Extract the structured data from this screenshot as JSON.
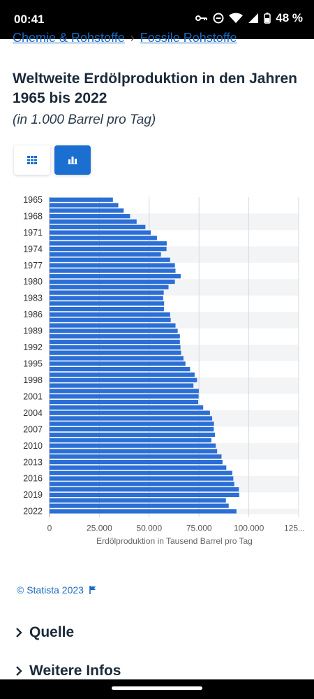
{
  "status": {
    "time": "00:41",
    "battery": "48 %"
  },
  "breadcrumb": {
    "item1": "Chemie & Rohstoffe",
    "separator": "›",
    "item2": "Fossile Rohstoffe"
  },
  "header": {
    "title": "Weltweite Erdölproduktion in den Jahren 1965 bis 2022",
    "subtitle": "(in 1.000 Barrel pro Tag)"
  },
  "colors": {
    "bar": "#2b6fd6",
    "accent": "#1a6fd0",
    "link": "#1a6bc2"
  },
  "chart_data": {
    "type": "bar",
    "orientation": "horizontal",
    "categories": [
      "1965",
      "1966",
      "1967",
      "1968",
      "1969",
      "1970",
      "1971",
      "1972",
      "1973",
      "1974",
      "1975",
      "1976",
      "1977",
      "1978",
      "1979",
      "1980",
      "1981",
      "1982",
      "1983",
      "1984",
      "1985",
      "1986",
      "1987",
      "1988",
      "1989",
      "1990",
      "1991",
      "1992",
      "1993",
      "1994",
      "1995",
      "1996",
      "1997",
      "1998",
      "1999",
      "2000",
      "2001",
      "2002",
      "2003",
      "2004",
      "2005",
      "2006",
      "2007",
      "2008",
      "2009",
      "2010",
      "2011",
      "2012",
      "2013",
      "2014",
      "2015",
      "2016",
      "2017",
      "2018",
      "2019",
      "2020",
      "2021",
      "2022"
    ],
    "y_tick_labels": [
      "1965",
      "1968",
      "1971",
      "1974",
      "1977",
      "1980",
      "1983",
      "1986",
      "1989",
      "1992",
      "1995",
      "1998",
      "2001",
      "2004",
      "2007",
      "2010",
      "2013",
      "2016",
      "2019",
      "2022"
    ],
    "values": [
      31800,
      34500,
      37200,
      40400,
      43700,
      48100,
      50800,
      53900,
      58800,
      58700,
      55900,
      60500,
      62900,
      63200,
      65800,
      62900,
      59700,
      57300,
      57000,
      57500,
      57400,
      60500,
      60800,
      63200,
      64300,
      65400,
      65400,
      65700,
      66000,
      67200,
      68200,
      70500,
      72800,
      74000,
      72200,
      74900,
      74800,
      74600,
      77100,
      80500,
      81600,
      82500,
      82400,
      83000,
      81200,
      83400,
      84100,
      86300,
      86800,
      88700,
      91700,
      92200,
      92700,
      95000,
      95200,
      88500,
      89900,
      93800
    ],
    "x_ticks": [
      "0",
      "25.000",
      "50.000",
      "75.000",
      "100.000",
      "125..."
    ],
    "xlim": [
      0,
      125000
    ],
    "xlabel": "Erdölproduktion in Tausend Barrel pro Tag",
    "ylabel": "",
    "grid": true
  },
  "footer": {
    "credit": "© Statista 2023",
    "quelle": "Quelle",
    "weitere": "Weitere Infos"
  }
}
